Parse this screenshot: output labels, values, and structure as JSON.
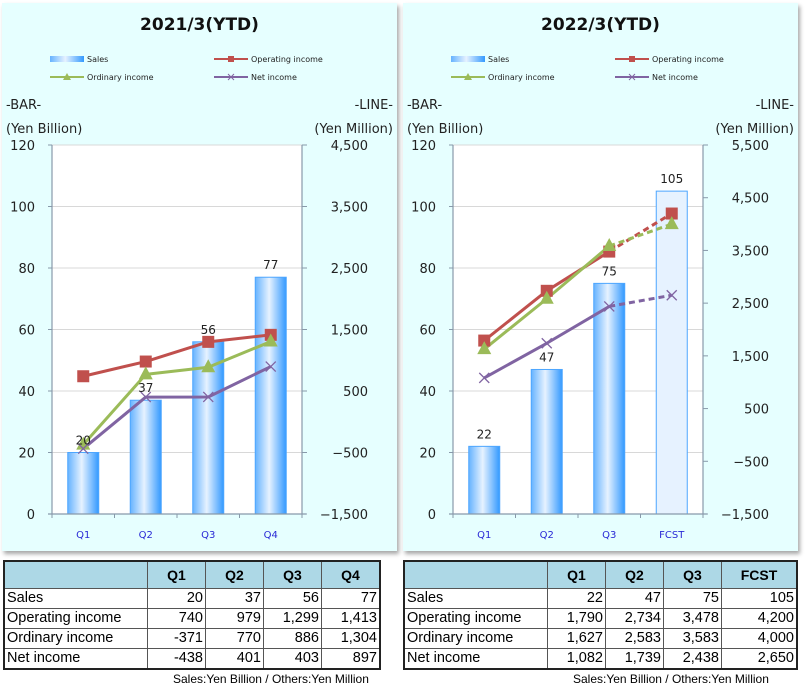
{
  "chart_data": [
    {
      "type": "bar+line",
      "title": "2021/3(YTD)",
      "left_axis_label": "-BAR-",
      "left_axis_unit": "(Yen Billion)",
      "right_axis_label": "-LINE-",
      "right_axis_unit": "(Yen Million)",
      "categories": [
        "Q1",
        "Q2",
        "Q3",
        "Q4"
      ],
      "ylim_left": [
        0,
        120
      ],
      "left_ticks": [
        "0",
        "20",
        "40",
        "60",
        "80",
        "100",
        "120"
      ],
      "left_tick_values": [
        0,
        20,
        40,
        60,
        80,
        100,
        120
      ],
      "ylim_right": [
        -1500,
        4500
      ],
      "right_ticks": [
        "−1,500",
        "−500",
        "500",
        "1,500",
        "2,500",
        "3,500",
        "4,500"
      ],
      "right_tick_values": [
        -1500,
        -500,
        500,
        1500,
        2500,
        3500,
        4500
      ],
      "forecast_index": -1,
      "bars": {
        "name": "Sales",
        "values": [
          20,
          37,
          56,
          77
        ],
        "labels": [
          "20",
          "37",
          "56",
          "77"
        ]
      },
      "series": [
        {
          "name": "Operating income",
          "key": "op",
          "values": [
            740,
            979,
            1299,
            1413
          ]
        },
        {
          "name": "Ordinary income",
          "key": "ord",
          "values": [
            -371,
            770,
            886,
            1304
          ]
        },
        {
          "name": "Net income",
          "key": "net",
          "values": [
            -438,
            401,
            403,
            897
          ]
        }
      ],
      "legend": [
        "Sales",
        "Operating income",
        "Ordinary income",
        "Net income"
      ],
      "legend_position": "top",
      "grid": true
    },
    {
      "type": "bar+line",
      "title": "2022/3(YTD)",
      "left_axis_label": "-BAR-",
      "left_axis_unit": "(Yen Billion)",
      "right_axis_label": "-LINE-",
      "right_axis_unit": "(Yen Million)",
      "categories": [
        "Q1",
        "Q2",
        "Q3",
        "FCST"
      ],
      "ylim_left": [
        0,
        120
      ],
      "left_ticks": [
        "0",
        "20",
        "40",
        "60",
        "80",
        "100",
        "120"
      ],
      "left_tick_values": [
        0,
        20,
        40,
        60,
        80,
        100,
        120
      ],
      "ylim_right": [
        -1500,
        5500
      ],
      "right_ticks": [
        "−1,500",
        "−500",
        "500",
        "1,500",
        "2,500",
        "3,500",
        "4,500",
        "5,500"
      ],
      "right_tick_values": [
        -1500,
        -500,
        500,
        1500,
        2500,
        3500,
        4500,
        5500
      ],
      "forecast_index": 3,
      "bars": {
        "name": "Sales",
        "values": [
          22,
          47,
          75,
          105
        ],
        "labels": [
          "22",
          "47",
          "75",
          "105"
        ]
      },
      "series": [
        {
          "name": "Operating income",
          "key": "op",
          "values": [
            1790,
            2734,
            3478,
            4200
          ]
        },
        {
          "name": "Ordinary income",
          "key": "ord",
          "values": [
            1627,
            2583,
            3583,
            4000
          ]
        },
        {
          "name": "Net income",
          "key": "net",
          "values": [
            1082,
            1739,
            2438,
            2650
          ]
        }
      ],
      "legend": [
        "Sales",
        "Operating income",
        "Ordinary income",
        "Net income"
      ],
      "legend_position": "top",
      "grid": true
    }
  ],
  "colors": {
    "op": "#c0504d",
    "ord": "#9bbb59",
    "net": "#8064a2",
    "bar": "#4da6ff",
    "bar_forecast": "#e6f2ff",
    "panel_bg": "#e6ffff",
    "category_label": "#2a2ad6",
    "table_header": "#add8e6"
  },
  "tables": [
    {
      "headers": [
        "",
        "Q1",
        "Q2",
        "Q3",
        "Q4"
      ],
      "rows": [
        {
          "label": "Sales",
          "values": [
            "20",
            "37",
            "56",
            "77"
          ]
        },
        {
          "label": "Operating income",
          "values": [
            "740",
            "979",
            "1,299",
            "1,413"
          ]
        },
        {
          "label": "Ordinary income",
          "values": [
            "-371",
            "770",
            "886",
            "1,304"
          ]
        },
        {
          "label": "Net income",
          "values": [
            "-438",
            "401",
            "403",
            "897"
          ]
        }
      ],
      "note": "Sales:Yen Billion / Others:Yen Million"
    },
    {
      "headers": [
        "",
        "Q1",
        "Q2",
        "Q3",
        "FCST"
      ],
      "rows": [
        {
          "label": "Sales",
          "values": [
            "22",
            "47",
            "75",
            "105"
          ]
        },
        {
          "label": "Operating income",
          "values": [
            "1,790",
            "2,734",
            "3,478",
            "4,200"
          ]
        },
        {
          "label": "Ordinary income",
          "values": [
            "1,627",
            "2,583",
            "3,583",
            "4,000"
          ]
        },
        {
          "label": "Net income",
          "values": [
            "1,082",
            "1,739",
            "2,438",
            "2,650"
          ]
        }
      ],
      "note": "Sales:Yen Billion / Others:Yen Million"
    }
  ]
}
